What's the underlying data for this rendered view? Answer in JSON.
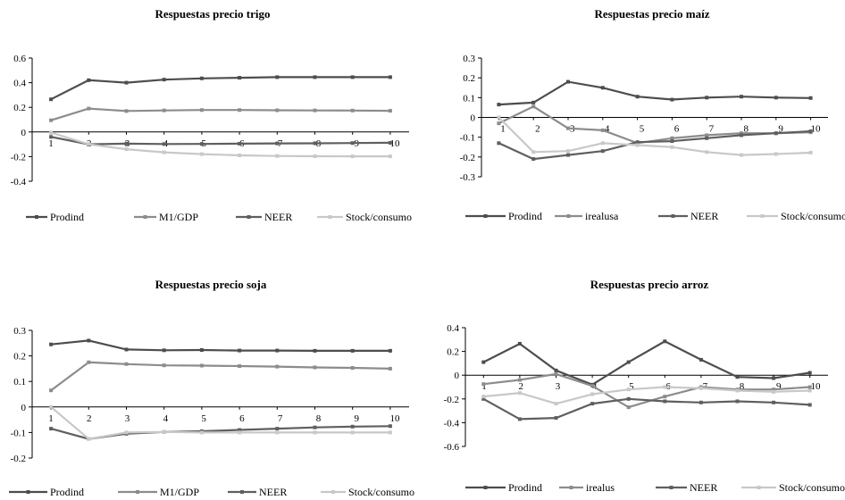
{
  "colors": {
    "prodind": "#4d4d4d",
    "second": "#8c8c8c",
    "neer": "#5f5f5f",
    "stock": "#c8c8c8",
    "axis": "#000000"
  },
  "chart_data": [
    {
      "type": "line",
      "title": "Respuestas precio trigo",
      "categories": [
        "1",
        "2",
        "3",
        "4",
        "5",
        "6",
        "7",
        "8",
        "9",
        "10"
      ],
      "ylim": [
        -0.4,
        0.6
      ],
      "yticks": [
        -0.4,
        -0.2,
        0,
        0.2,
        0.4,
        0.6
      ],
      "ytick_labels": [
        "-0.4",
        "-0.2",
        "0",
        "0.2",
        "0.4",
        "0.6"
      ],
      "legend_position": "bottom",
      "series": [
        {
          "name": "Prodind",
          "color_key": "prodind",
          "values": [
            0.265,
            0.42,
            0.4,
            0.425,
            0.435,
            0.44,
            0.445,
            0.445,
            0.445,
            0.445
          ]
        },
        {
          "name": "M1/GDP",
          "color_key": "second",
          "values": [
            0.095,
            0.19,
            0.17,
            0.175,
            0.178,
            0.178,
            0.176,
            0.175,
            0.174,
            0.172
          ]
        },
        {
          "name": "NEER",
          "color_key": "neer",
          "values": [
            -0.04,
            -0.1,
            -0.095,
            -0.098,
            -0.097,
            -0.095,
            -0.093,
            -0.092,
            -0.09,
            -0.088
          ]
        },
        {
          "name": "Stock/consumo",
          "color_key": "stock",
          "values": [
            -0.005,
            -0.1,
            -0.14,
            -0.165,
            -0.18,
            -0.19,
            -0.195,
            -0.197,
            -0.198,
            -0.198
          ]
        }
      ]
    },
    {
      "type": "line",
      "title": "Respuestas precio maíz",
      "categories": [
        "1",
        "2",
        "3",
        "4",
        "5",
        "6",
        "7",
        "8",
        "9",
        "10"
      ],
      "ylim": [
        -0.3,
        0.3
      ],
      "yticks": [
        -0.3,
        -0.2,
        -0.1,
        0,
        0.1,
        0.2,
        0.3
      ],
      "ytick_labels": [
        "-0.3",
        "-0.2",
        "-0.1",
        "0",
        "0.1",
        "0.2",
        "0.3"
      ],
      "legend_position": "bottom",
      "series": [
        {
          "name": "Prodind",
          "color_key": "prodind",
          "values": [
            0.065,
            0.075,
            0.18,
            0.15,
            0.105,
            0.09,
            0.1,
            0.105,
            0.1,
            0.098
          ]
        },
        {
          "name": "irealusa",
          "color_key": "second",
          "values": [
            -0.03,
            0.055,
            -0.055,
            -0.065,
            -0.13,
            -0.105,
            -0.09,
            -0.08,
            -0.08,
            -0.075
          ]
        },
        {
          "name": "NEER",
          "color_key": "neer",
          "values": [
            -0.13,
            -0.21,
            -0.19,
            -0.17,
            -0.125,
            -0.12,
            -0.105,
            -0.09,
            -0.08,
            -0.07
          ]
        },
        {
          "name": "Stock/consumo",
          "color_key": "stock",
          "values": [
            0.0,
            -0.175,
            -0.17,
            -0.13,
            -0.14,
            -0.15,
            -0.175,
            -0.19,
            -0.185,
            -0.178
          ]
        }
      ]
    },
    {
      "type": "line",
      "title": "Respuestas precio soja",
      "categories": [
        "1",
        "2",
        "3",
        "4",
        "5",
        "6",
        "7",
        "8",
        "9",
        "10"
      ],
      "ylim": [
        -0.2,
        0.3
      ],
      "yticks": [
        -0.2,
        -0.1,
        0,
        0.1,
        0.2,
        0.3
      ],
      "ytick_labels": [
        "-0.2",
        "-0.1",
        "0",
        "0.1",
        "0.2",
        "0.3"
      ],
      "legend_position": "bottom",
      "series": [
        {
          "name": "Prodind",
          "color_key": "prodind",
          "values": [
            0.245,
            0.26,
            0.225,
            0.222,
            0.223,
            0.221,
            0.221,
            0.22,
            0.22,
            0.22
          ]
        },
        {
          "name": "M1/GDP",
          "color_key": "second",
          "values": [
            0.065,
            0.175,
            0.168,
            0.163,
            0.162,
            0.16,
            0.158,
            0.155,
            0.153,
            0.15
          ]
        },
        {
          "name": "NEER",
          "color_key": "neer",
          "values": [
            -0.085,
            -0.125,
            -0.105,
            -0.098,
            -0.095,
            -0.09,
            -0.085,
            -0.08,
            -0.077,
            -0.075
          ]
        },
        {
          "name": "Stock/consumo",
          "color_key": "stock",
          "values": [
            0.0,
            -0.125,
            -0.1,
            -0.098,
            -0.1,
            -0.1,
            -0.1,
            -0.1,
            -0.1,
            -0.1
          ]
        }
      ]
    },
    {
      "type": "line",
      "title": "Respuestas precio arroz",
      "categories": [
        "1",
        "2",
        "3",
        "4",
        "5",
        "6",
        "7",
        "8",
        "9",
        "10"
      ],
      "ylim": [
        -0.6,
        0.4
      ],
      "yticks": [
        -0.6,
        -0.4,
        -0.2,
        0,
        0.2,
        0.4
      ],
      "ytick_labels": [
        "-0.6",
        "-0.4",
        "-0.2",
        "0",
        "0.2",
        "0.4"
      ],
      "legend_position": "bottom",
      "series": [
        {
          "name": "Prodind",
          "color_key": "prodind",
          "values": [
            0.11,
            0.265,
            0.04,
            -0.08,
            0.11,
            0.285,
            0.13,
            -0.015,
            -0.025,
            0.02
          ]
        },
        {
          "name": "irealus",
          "color_key": "second",
          "values": [
            -0.075,
            -0.04,
            0.01,
            -0.09,
            -0.27,
            -0.18,
            -0.1,
            -0.12,
            -0.12,
            -0.1
          ]
        },
        {
          "name": "NEER",
          "color_key": "neer",
          "values": [
            -0.2,
            -0.37,
            -0.36,
            -0.24,
            -0.2,
            -0.22,
            -0.23,
            -0.22,
            -0.23,
            -0.25
          ]
        },
        {
          "name": "Stock/consumo",
          "color_key": "stock",
          "values": [
            -0.18,
            -0.15,
            -0.24,
            -0.16,
            -0.12,
            -0.1,
            -0.11,
            -0.13,
            -0.14,
            -0.13
          ]
        }
      ]
    }
  ]
}
